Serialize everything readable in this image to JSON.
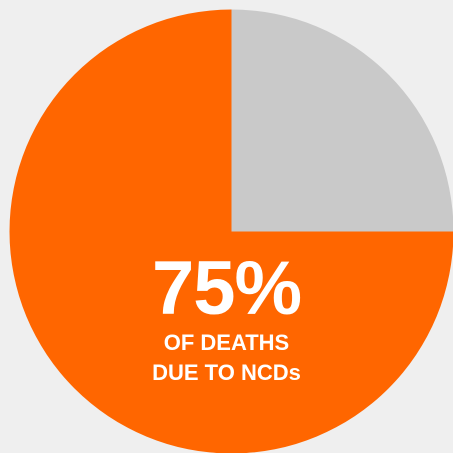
{
  "chart_data": {
    "type": "pie",
    "slices": [
      {
        "value": 75,
        "color": "#ff6600"
      },
      {
        "value": 25,
        "color": "#c9c9c9"
      }
    ],
    "start_angle_deg": 0,
    "direction": "clockwise-from-top-for-gray",
    "center_label": {
      "value_text": "75%",
      "caption_lines": [
        "OF DEATHS",
        "DUE TO NCDs"
      ]
    }
  },
  "colors": {
    "background": "#efefef",
    "accent": "#ff6600",
    "remainder": "#c9c9c9",
    "text": "#ffffff"
  }
}
